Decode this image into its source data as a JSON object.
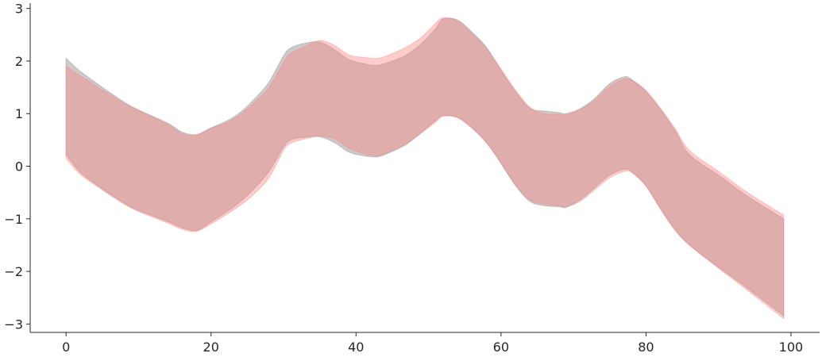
{
  "chart_data": {
    "type": "area",
    "title": "",
    "xlabel": "",
    "ylabel": "",
    "xlim": [
      -4.95,
      103.95
    ],
    "ylim": [
      -3.16,
      3.1
    ],
    "xticks": [
      0,
      20,
      40,
      60,
      80,
      100
    ],
    "yticks": [
      -3,
      -2,
      -1,
      0,
      1,
      2,
      3
    ],
    "xtick_labels": [
      "0",
      "20",
      "40",
      "60",
      "80",
      "100"
    ],
    "ytick_labels": [
      "−3",
      "−2",
      "−1",
      "0",
      "1",
      "2",
      "3"
    ],
    "grid": false,
    "legend": "none",
    "series": [
      {
        "color": "#808080",
        "opacity": 0.4,
        "x": [
          0,
          2,
          5,
          8,
          10,
          14,
          16,
          18,
          20,
          22,
          24,
          26,
          28,
          30,
          31,
          33,
          35,
          37,
          39,
          41,
          43,
          45,
          47,
          49,
          51,
          52,
          54,
          56,
          58,
          60,
          62,
          64,
          66,
          68,
          69,
          71,
          73,
          75,
          77,
          78,
          80,
          82,
          84,
          86,
          90,
          94,
          99
        ],
        "upper": [
          2.05,
          1.8,
          1.5,
          1.22,
          1.07,
          0.82,
          0.65,
          0.6,
          0.73,
          0.85,
          1.02,
          1.28,
          1.6,
          2.1,
          2.25,
          2.34,
          2.36,
          2.22,
          2.03,
          1.95,
          1.92,
          2.0,
          2.12,
          2.33,
          2.62,
          2.8,
          2.78,
          2.55,
          2.26,
          1.82,
          1.42,
          1.1,
          1.05,
          1.02,
          1.0,
          1.1,
          1.3,
          1.57,
          1.7,
          1.65,
          1.42,
          1.08,
          0.68,
          0.22,
          -0.17,
          -0.57,
          -1.0
        ],
        "lower": [
          0.22,
          -0.12,
          -0.43,
          -0.7,
          -0.84,
          -1.05,
          -1.17,
          -1.22,
          -1.06,
          -0.88,
          -0.68,
          -0.42,
          -0.1,
          0.36,
          0.5,
          0.55,
          0.56,
          0.45,
          0.27,
          0.2,
          0.18,
          0.28,
          0.42,
          0.64,
          0.87,
          0.96,
          0.93,
          0.73,
          0.45,
          0.05,
          -0.37,
          -0.67,
          -0.75,
          -0.77,
          -0.78,
          -0.63,
          -0.4,
          -0.17,
          -0.06,
          -0.1,
          -0.37,
          -0.8,
          -1.2,
          -1.5,
          -1.92,
          -2.32,
          -2.85
        ]
      },
      {
        "color": "#ff8080",
        "opacity": 0.4,
        "x": [
          0,
          2,
          5,
          8,
          10,
          14,
          16,
          18,
          20,
          22,
          24,
          26,
          28,
          30,
          31,
          33,
          35,
          37,
          39,
          41,
          43,
          45,
          47,
          49,
          51,
          52,
          54,
          56,
          58,
          60,
          62,
          64,
          66,
          68,
          69,
          71,
          73,
          75,
          77,
          78,
          80,
          82,
          84,
          86,
          90,
          94,
          99
        ],
        "upper": [
          1.9,
          1.72,
          1.45,
          1.2,
          1.06,
          0.8,
          0.62,
          0.6,
          0.72,
          0.82,
          0.98,
          1.22,
          1.5,
          1.98,
          2.15,
          2.28,
          2.39,
          2.3,
          2.12,
          2.07,
          2.05,
          2.14,
          2.27,
          2.45,
          2.72,
          2.82,
          2.76,
          2.52,
          2.24,
          1.85,
          1.45,
          1.12,
          1.0,
          0.99,
          0.98,
          1.08,
          1.26,
          1.52,
          1.66,
          1.64,
          1.44,
          1.1,
          0.72,
          0.3,
          -0.1,
          -0.5,
          -0.93
        ],
        "lower": [
          0.15,
          -0.16,
          -0.45,
          -0.72,
          -0.86,
          -1.08,
          -1.2,
          -1.24,
          -1.1,
          -0.93,
          -0.75,
          -0.52,
          -0.22,
          0.3,
          0.44,
          0.52,
          0.57,
          0.52,
          0.34,
          0.24,
          0.2,
          0.3,
          0.44,
          0.63,
          0.84,
          0.95,
          0.92,
          0.72,
          0.44,
          0.07,
          -0.35,
          -0.64,
          -0.72,
          -0.75,
          -0.77,
          -0.66,
          -0.44,
          -0.22,
          -0.1,
          -0.12,
          -0.38,
          -0.82,
          -1.22,
          -1.5,
          -1.94,
          -2.36,
          -2.9
        ]
      }
    ]
  }
}
